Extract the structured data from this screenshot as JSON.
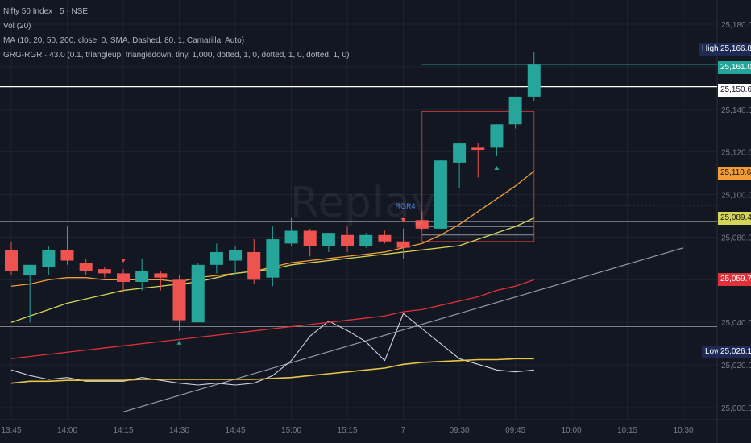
{
  "legend": {
    "title": "Nifty 50 Index · 5 · NSE",
    "vol": "Vol (20)",
    "ma": "MA (10, 20, 50, 200, close, 0, SMA, Dashed, 80, 1, Camarilla, Auto)",
    "grg": "GRG-RGR · 43.0 (0.1, triangleup, triangledown, tiny, 1,000, dotted, 1, 0, dotted, 1, 0, dotted, 1, 0)"
  },
  "watermark": "Replay",
  "marker_text": "RGR4",
  "price_tags": {
    "high_label": "High",
    "low_label": "Low",
    "high": "25,166.85",
    "current": "25,161.05",
    "white_line": "25,150.65",
    "ma_orange": "25,110.60",
    "ma_yellow": "25,089.43",
    "ma_red": "25,059.71",
    "low": "25,026.15"
  },
  "colors": {
    "up": "#26a69a",
    "down": "#ef5350",
    "background": "#131722",
    "ma_orange": "#f29d38",
    "ma_yellow": "#d4d456",
    "ma_red": "#e0313a",
    "volume_white": "#d1d4dc",
    "volume_ma": "#e8c44a"
  },
  "chart_data": {
    "type": "candlestick",
    "symbol": "Nifty 50 Index",
    "timeframe": "5",
    "exchange": "NSE",
    "y_ticks": [
      25000,
      25020,
      25040,
      25060,
      25080,
      25100,
      25120,
      25140,
      25160,
      25180
    ],
    "y_tick_labels": [
      "25,000.00",
      "25,020.00",
      "25,040.00",
      "25,060.00",
      "25,080.00",
      "25,100.00",
      "25,120.00",
      "25,140.00",
      "25,160.00",
      "25,180.00"
    ],
    "ylim": [
      24995,
      25190
    ],
    "x_labels": [
      {
        "i": 0,
        "label": "13:45"
      },
      {
        "i": 3,
        "label": "14:00"
      },
      {
        "i": 6,
        "label": "14:15"
      },
      {
        "i": 9,
        "label": "14:30"
      },
      {
        "i": 12,
        "label": "14:45"
      },
      {
        "i": 15,
        "label": "15:00"
      },
      {
        "i": 18,
        "label": "15:15"
      },
      {
        "i": 21,
        "label": "7"
      },
      {
        "i": 24,
        "label": "09:30"
      },
      {
        "i": 27,
        "label": "09:45"
      },
      {
        "i": 30,
        "label": "10:00"
      },
      {
        "i": 33,
        "label": "10:15"
      },
      {
        "i": 36,
        "label": "10:30"
      }
    ],
    "candles": [
      {
        "o": 25074,
        "h": 25078,
        "l": 25062,
        "c": 25064
      },
      {
        "o": 25062,
        "h": 25067,
        "l": 25040,
        "c": 25067
      },
      {
        "o": 25066,
        "h": 25076,
        "l": 25062,
        "c": 25074
      },
      {
        "o": 25074,
        "h": 25085,
        "l": 25067,
        "c": 25069
      },
      {
        "o": 25068,
        "h": 25070,
        "l": 25062,
        "c": 25064
      },
      {
        "o": 25065,
        "h": 25066,
        "l": 25061,
        "c": 25063
      },
      {
        "o": 25063,
        "h": 25065,
        "l": 25054,
        "c": 25059
      },
      {
        "o": 25059,
        "h": 25070,
        "l": 25055,
        "c": 25064
      },
      {
        "o": 25063,
        "h": 25064,
        "l": 25055,
        "c": 25061
      },
      {
        "o": 25060,
        "h": 25062,
        "l": 25036,
        "c": 25041
      },
      {
        "o": 25040,
        "h": 25068,
        "l": 25040,
        "c": 25067
      },
      {
        "o": 25067,
        "h": 25077,
        "l": 25063,
        "c": 25073
      },
      {
        "o": 25069,
        "h": 25076,
        "l": 25062,
        "c": 25074
      },
      {
        "o": 25073,
        "h": 25079,
        "l": 25058,
        "c": 25060
      },
      {
        "o": 25061,
        "h": 25085,
        "l": 25057,
        "c": 25079
      },
      {
        "o": 25077,
        "h": 25089,
        "l": 25076,
        "c": 25083
      },
      {
        "o": 25083,
        "h": 25084,
        "l": 25071,
        "c": 25076
      },
      {
        "o": 25076,
        "h": 25082,
        "l": 25073,
        "c": 25082
      },
      {
        "o": 25081,
        "h": 25085,
        "l": 25073,
        "c": 25076
      },
      {
        "o": 25076,
        "h": 25082,
        "l": 25075,
        "c": 25081
      },
      {
        "o": 25081,
        "h": 25083,
        "l": 25077,
        "c": 25078
      },
      {
        "o": 25078,
        "h": 25084,
        "l": 25070,
        "c": 25075
      },
      {
        "o": 25088,
        "h": 25092,
        "l": 25083,
        "c": 25084
      },
      {
        "o": 25084,
        "h": 25116,
        "l": 25084,
        "c": 25116
      },
      {
        "o": 25115,
        "h": 25124,
        "l": 25103,
        "c": 25124
      },
      {
        "o": 25122,
        "h": 25124,
        "l": 25108,
        "c": 25121
      },
      {
        "o": 25122,
        "h": 25133,
        "l": 25118,
        "c": 25133
      },
      {
        "o": 25133,
        "h": 25146,
        "l": 25131,
        "c": 25146
      },
      {
        "o": 25146,
        "h": 25167,
        "l": 25144,
        "c": 25161
      }
    ],
    "moving_averages": [
      {
        "name": "MA 10",
        "color": "#f29d38",
        "values": [
          25057,
          25058,
          25060,
          25061,
          25061,
          25060,
          25060,
          25060,
          25060,
          25059,
          25061,
          25062,
          25063,
          25064,
          25066,
          25068,
          25069,
          25070,
          25071,
          25072,
          25073,
          25075,
          25077,
          25081,
          25086,
          25092,
          25098,
          25104,
          25111
        ]
      },
      {
        "name": "MA 20",
        "color": "#d4d456",
        "values": [
          25040,
          25043,
          25046,
          25049,
          25051,
          25053,
          25055,
          25056,
          25057,
          25058,
          25059,
          25061,
          25063,
          25064,
          25065,
          25067,
          25068,
          25069,
          25070,
          25071,
          25072,
          25073,
          25074,
          25075,
          25076,
          25079,
          25082,
          25085,
          25089
        ]
      },
      {
        "name": "MA 50",
        "color": "#e0313a",
        "values": [
          25023,
          25024,
          25025,
          25026,
          25027,
          25028,
          25029,
          25030,
          25031,
          25032,
          25033,
          25034,
          25035,
          25036,
          25037,
          25038,
          25039,
          25040,
          25041,
          25042,
          25043,
          25045,
          25046,
          25048,
          25050,
          25052,
          25055,
          25057,
          25060
        ]
      }
    ],
    "volume": [
      52,
      46,
      42,
      44,
      40,
      40,
      40,
      44,
      41,
      38,
      36,
      38,
      36,
      38,
      46,
      62,
      88,
      104,
      94,
      82,
      62,
      112,
      96,
      80,
      64,
      58,
      52,
      50,
      52
    ],
    "volume_ma": [
      38,
      40,
      40,
      41,
      41,
      41,
      41,
      42,
      42,
      42,
      42,
      42,
      42,
      42,
      43,
      44,
      46,
      48,
      50,
      52,
      54,
      58,
      60,
      61,
      62,
      63,
      63,
      64,
      64
    ],
    "horizontal_levels": [
      25150.65,
      25087.5,
      25038
    ],
    "dashed_level": 25095,
    "trendline": {
      "from": {
        "i": 6,
        "p": 24998
      },
      "to": {
        "i": 36,
        "p": 25075
      }
    },
    "sell_arrows": [
      6,
      21
    ],
    "buy_arrows": [
      9,
      26
    ],
    "rgr_box": {
      "i0": 22,
      "i1": 28,
      "top": 25139,
      "bottom": 25078,
      "mid1": 25085,
      "mid2": 25081
    }
  }
}
